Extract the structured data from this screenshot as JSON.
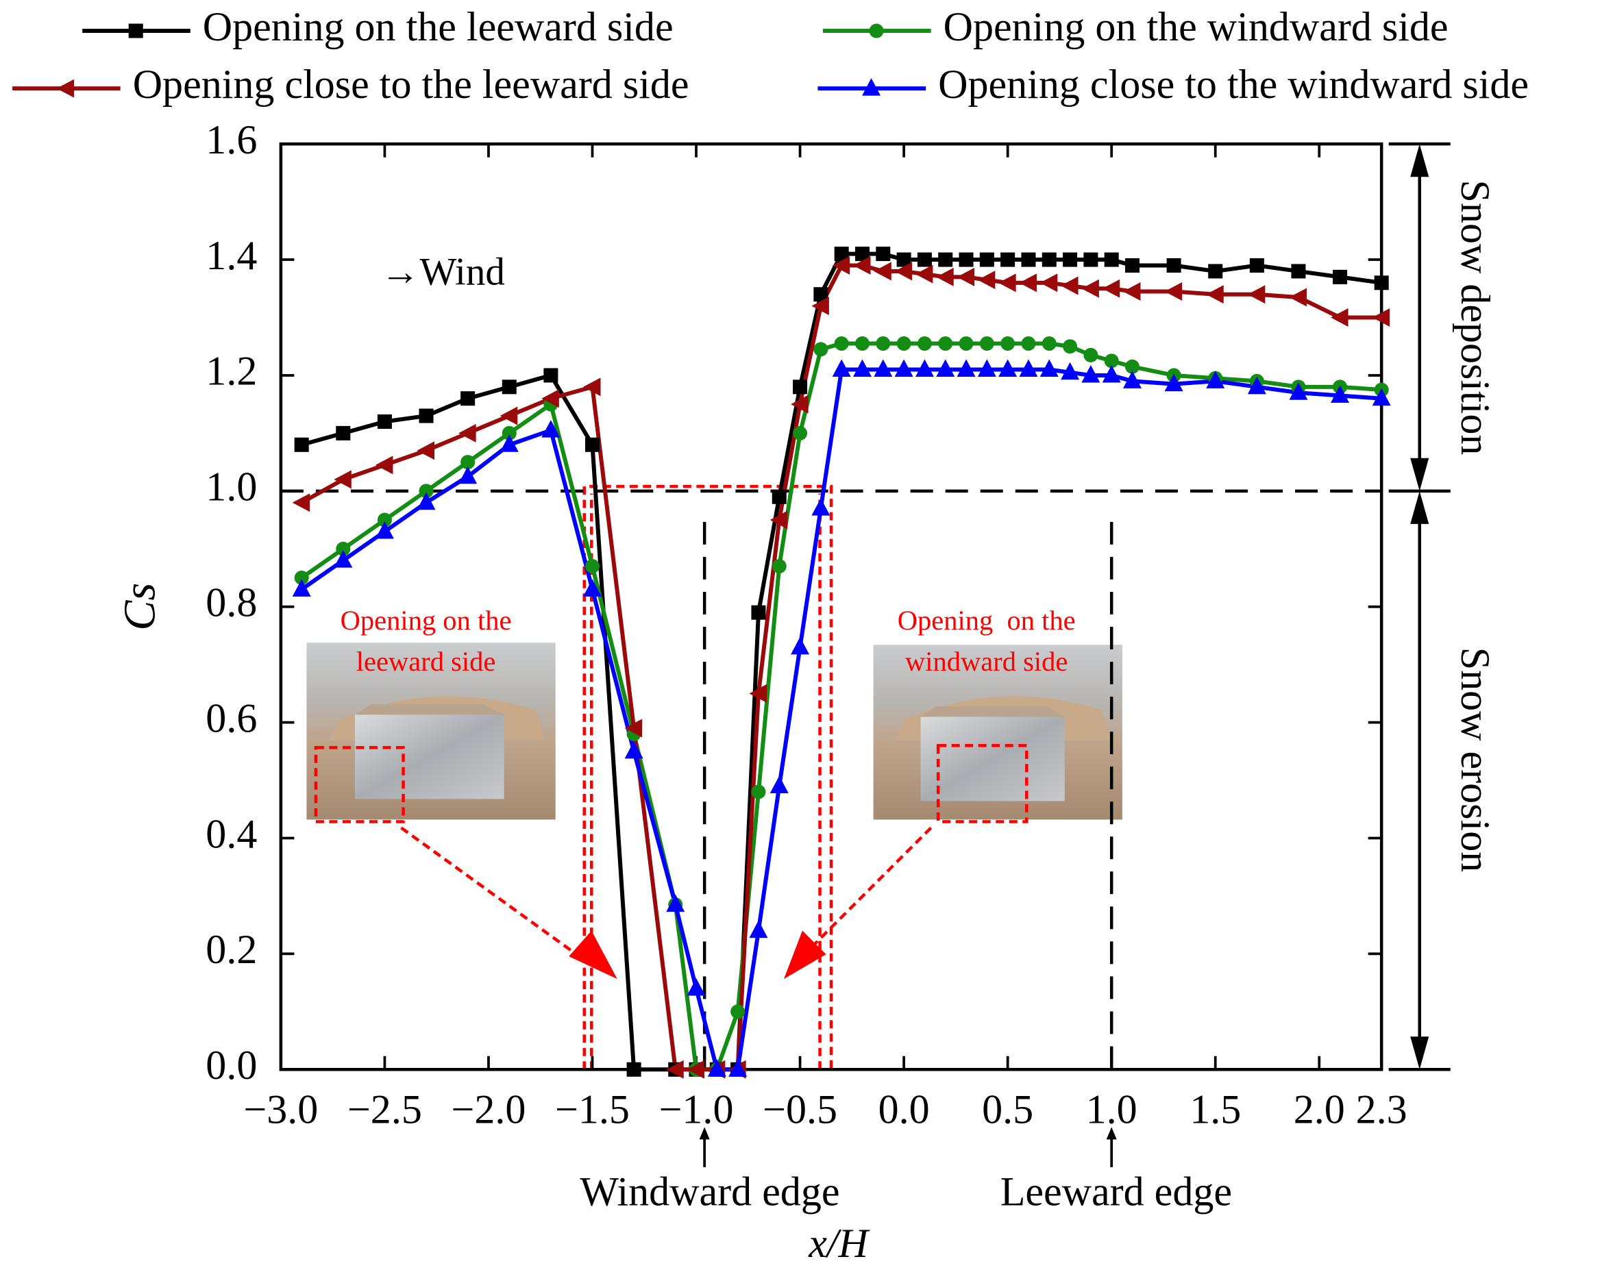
{
  "chart_data": {
    "type": "line",
    "x_label": "x/H",
    "y_label": "Cs",
    "x": [
      -2.9,
      -2.7,
      -2.5,
      -2.3,
      -2.1,
      -1.9,
      -1.7,
      -1.5,
      -1.3,
      -1.1,
      -1.0,
      -0.9,
      -0.8,
      -0.7,
      -0.6,
      -0.5,
      -0.4,
      -0.3,
      -0.2,
      -0.1,
      0.0,
      0.1,
      0.2,
      0.3,
      0.4,
      0.5,
      0.6,
      0.7,
      0.8,
      0.9,
      1.0,
      1.1,
      1.3,
      1.5,
      1.7,
      1.9,
      2.1,
      2.3
    ],
    "series": [
      {
        "name": "Opening on the leeward side",
        "color": "#000000",
        "marker": "square",
        "values": [
          1.08,
          1.1,
          1.12,
          1.13,
          1.16,
          1.18,
          1.2,
          1.08,
          0,
          0,
          0,
          0,
          0,
          0.79,
          0.99,
          1.18,
          1.34,
          1.41,
          1.41,
          1.41,
          1.4,
          1.4,
          1.4,
          1.4,
          1.4,
          1.4,
          1.4,
          1.4,
          1.4,
          1.4,
          1.4,
          1.39,
          1.39,
          1.38,
          1.39,
          1.38,
          1.37,
          1.36
        ]
      },
      {
        "name": "Opening on the windward side",
        "color": "#138d13",
        "marker": "circle",
        "values": [
          0.85,
          0.9,
          0.95,
          1.0,
          1.05,
          1.1,
          1.15,
          0.87,
          0.58,
          0.285,
          0,
          0,
          0.1,
          0.48,
          0.87,
          1.1,
          1.245,
          1.255,
          1.255,
          1.255,
          1.255,
          1.255,
          1.255,
          1.255,
          1.255,
          1.255,
          1.255,
          1.255,
          1.25,
          1.235,
          1.225,
          1.215,
          1.2,
          1.195,
          1.19,
          1.18,
          1.18,
          1.175
        ]
      },
      {
        "name": "Opening close to the leeward side",
        "color": "#9b0a0a",
        "marker": "triangle-left",
        "values": [
          0.98,
          1.02,
          1.045,
          1.07,
          1.1,
          1.13,
          1.16,
          1.18,
          0.59,
          0,
          0,
          0,
          0,
          0.65,
          0.95,
          1.15,
          1.32,
          1.39,
          1.39,
          1.38,
          1.38,
          1.375,
          1.37,
          1.37,
          1.365,
          1.36,
          1.36,
          1.36,
          1.355,
          1.35,
          1.35,
          1.345,
          1.345,
          1.34,
          1.34,
          1.335,
          1.3,
          1.3
        ]
      },
      {
        "name": "Opening close to the windward side",
        "color": "#0000ff",
        "marker": "triangle-up",
        "values": [
          0.83,
          0.88,
          0.93,
          0.98,
          1.025,
          1.08,
          1.105,
          0.83,
          0.55,
          0.285,
          0.14,
          0,
          0,
          0.24,
          0.49,
          0.73,
          0.97,
          1.21,
          1.21,
          1.21,
          1.21,
          1.21,
          1.21,
          1.21,
          1.21,
          1.21,
          1.21,
          1.21,
          1.205,
          1.2,
          1.2,
          1.19,
          1.185,
          1.19,
          1.18,
          1.17,
          1.165,
          1.16
        ]
      }
    ],
    "xlim": [
      -3.0,
      2.3
    ],
    "ylim": [
      0,
      1.6
    ],
    "xticks": [
      {
        "value": -3.0,
        "label": "−3.0"
      },
      {
        "value": -2.5,
        "label": "−2.5"
      },
      {
        "value": -2.0,
        "label": "−2.0"
      },
      {
        "value": -1.5,
        "label": "−1.5"
      },
      {
        "value": -1.0,
        "label": "−1.0"
      },
      {
        "value": -0.5,
        "label": "−0.5"
      },
      {
        "value": 0,
        "label": "0.0"
      },
      0.5,
      {
        "value": 1,
        "label": "1.0"
      },
      1.5,
      {
        "value": 2,
        "label": "2.0"
      },
      2.3
    ],
    "yticks": [
      {
        "value": 0,
        "label": "0.0"
      },
      0.2,
      0.4,
      0.6,
      0.8,
      {
        "value": 1,
        "label": "1.0"
      },
      1.2,
      1.4,
      1.6
    ],
    "reference_y": 1.0,
    "reference_x": [
      -0.96,
      1.0
    ],
    "annotations": {
      "wind": "→Wind",
      "windward_edge": "Windward edge",
      "leeward_edge": "Leeward edge",
      "deposition": "Snow deposition",
      "erosion": "Snow erosion"
    },
    "insets": [
      {
        "lines": [
          "Opening on the",
          "leeward side"
        ]
      },
      {
        "lines": [
          "Opening  on the",
          "windward side"
        ]
      }
    ]
  }
}
